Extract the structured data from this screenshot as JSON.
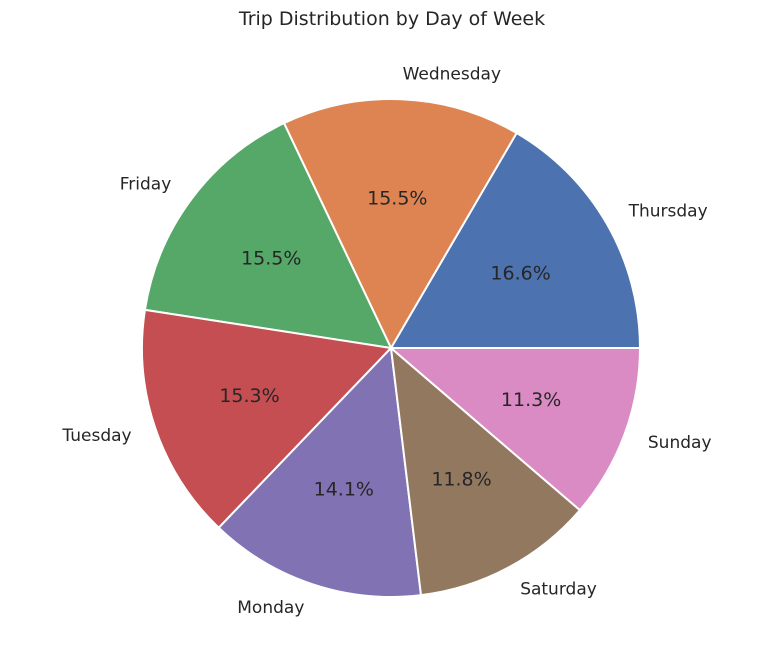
{
  "chart_data": {
    "type": "pie",
    "title": "Trip Distribution by Day of Week",
    "start_angle_deg": 0,
    "direction": "counterclockwise",
    "slices": [
      {
        "label": "Thursday",
        "percent": 16.6,
        "pct_text": "16.6%",
        "color": "#4c72b0"
      },
      {
        "label": "Wednesday",
        "percent": 15.5,
        "pct_text": "15.5%",
        "color": "#dd8452"
      },
      {
        "label": "Friday",
        "percent": 15.5,
        "pct_text": "15.5%",
        "color": "#55a868"
      },
      {
        "label": "Tuesday",
        "percent": 15.3,
        "pct_text": "15.3%",
        "color": "#c44e52"
      },
      {
        "label": "Monday",
        "percent": 14.1,
        "pct_text": "14.1%",
        "color": "#8172b3"
      },
      {
        "label": "Saturday",
        "percent": 11.8,
        "pct_text": "11.8%",
        "color": "#937860"
      },
      {
        "label": "Sunday",
        "percent": 11.3,
        "pct_text": "11.3%",
        "color": "#da8bc3"
      }
    ],
    "legend": "none"
  }
}
